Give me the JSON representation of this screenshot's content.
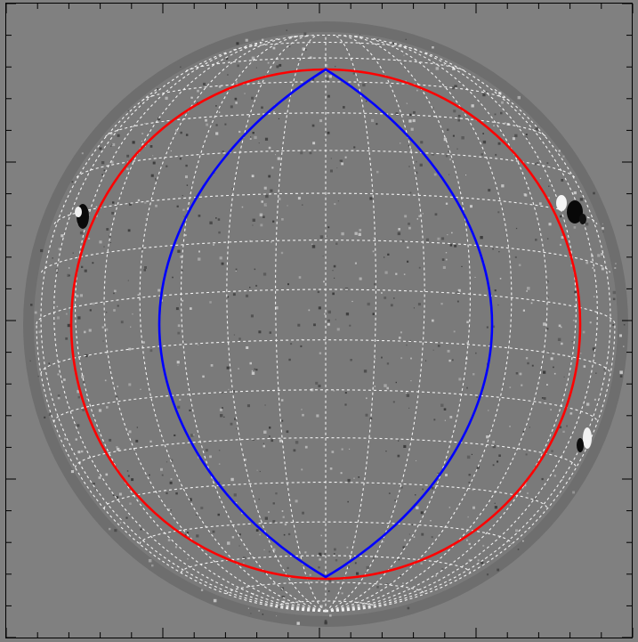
{
  "image": {
    "kind": "solar-magnetogram-difference-map",
    "background_color": "#808080",
    "disk_fill_color": "#7a7a7a",
    "grid_color": "#ffffff",
    "grid_style": "dashed",
    "tick_color": "#000000"
  },
  "overlays": {
    "outer_circle": {
      "color": "#ff0000",
      "shape": "circle"
    },
    "inner_lens": {
      "color": "#0000ff",
      "shape": "lens"
    }
  },
  "features": {
    "active_regions": [
      {
        "label": "",
        "location": "east-limb"
      },
      {
        "label": "",
        "location": "north-west-limb"
      },
      {
        "label": "",
        "location": "south-west-limb"
      }
    ]
  }
}
